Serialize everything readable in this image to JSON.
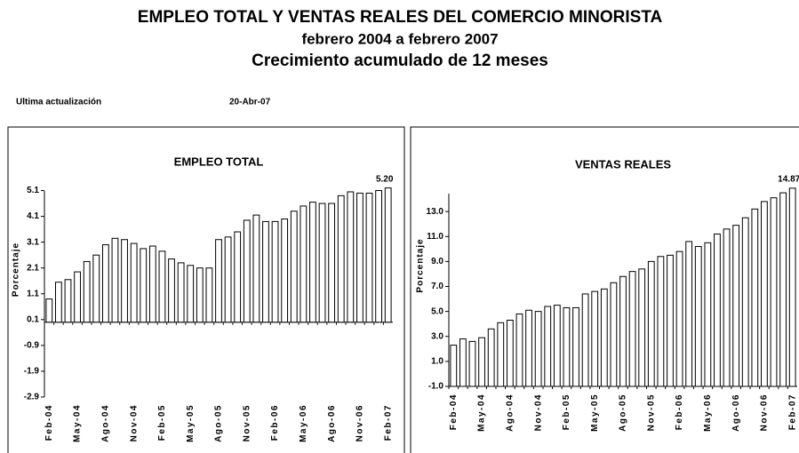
{
  "header": {
    "title": "EMPLEO TOTAL Y VENTAS REALES DEL COMERCIO MINORISTA",
    "subtitle": "febrero 2004 a febrero 2007",
    "subtitle2": "Crecimiento acumulado de 12 meses",
    "updated_label": "Ultima actualización",
    "updated_date": "20-Abr-07"
  },
  "chart_data": [
    {
      "type": "bar",
      "title": "EMPLEO TOTAL",
      "ylabel": "Porcentaje",
      "color": "#ffffff",
      "edge_color": "#000000",
      "categories": [
        "Feb-04",
        null,
        null,
        "May-04",
        null,
        null,
        "Ago-04",
        null,
        null,
        "Nov-04",
        null,
        null,
        "Feb-05",
        null,
        null,
        "May-05",
        null,
        null,
        "Ago-05",
        null,
        null,
        "Nov-05",
        null,
        null,
        "Feb-06",
        null,
        null,
        "May-06",
        null,
        null,
        "Ago-06",
        null,
        null,
        "Nov-06",
        null,
        null,
        "Feb-07"
      ],
      "values": [
        0.9,
        1.55,
        1.65,
        1.95,
        2.35,
        2.6,
        3.0,
        3.25,
        3.2,
        3.05,
        2.85,
        2.95,
        2.75,
        2.45,
        2.3,
        2.2,
        2.1,
        2.1,
        3.2,
        3.3,
        3.5,
        3.95,
        4.15,
        3.9,
        3.9,
        4.0,
        4.3,
        4.5,
        4.65,
        4.6,
        4.6,
        4.9,
        5.05,
        5.0,
        5.0,
        5.1,
        5.2
      ],
      "value_labels": [
        null,
        null,
        null,
        null,
        null,
        null,
        null,
        null,
        null,
        null,
        null,
        null,
        null,
        null,
        null,
        null,
        null,
        null,
        null,
        null,
        null,
        null,
        null,
        null,
        null,
        null,
        null,
        null,
        null,
        null,
        null,
        null,
        null,
        null,
        null,
        null,
        "5.20"
      ],
      "ylim": [
        -2.9,
        5.6
      ],
      "yticks": [
        -2.9,
        -1.9,
        -0.9,
        0.1,
        1.1,
        2.1,
        3.1,
        4.1,
        5.1
      ],
      "x_axis_at_min": false
    },
    {
      "type": "bar",
      "title": "VENTAS  REALES",
      "ylabel": "Porcentaje",
      "color": "#ffffff",
      "edge_color": "#000000",
      "categories": [
        "Feb-04",
        null,
        null,
        "May-04",
        null,
        null,
        "Ago-04",
        null,
        null,
        "Nov-04",
        null,
        null,
        "Feb-05",
        null,
        null,
        "May-05",
        null,
        null,
        "Ago-05",
        null,
        null,
        "Nov-05",
        null,
        null,
        "Feb-06",
        null,
        null,
        "May-06",
        null,
        null,
        "Ago-06",
        null,
        null,
        "Nov-06",
        null,
        null,
        "Feb-07"
      ],
      "values": [
        2.3,
        2.8,
        2.6,
        2.9,
        3.6,
        4.1,
        4.3,
        4.8,
        5.1,
        5.0,
        5.4,
        5.5,
        5.3,
        5.3,
        6.4,
        6.6,
        6.8,
        7.3,
        7.8,
        8.2,
        8.4,
        9.0,
        9.4,
        9.5,
        9.8,
        10.6,
        10.2,
        10.5,
        11.2,
        11.6,
        11.9,
        12.5,
        13.2,
        13.8,
        14.1,
        14.5,
        14.87
      ],
      "value_labels": [
        null,
        null,
        null,
        null,
        null,
        null,
        null,
        null,
        null,
        null,
        null,
        null,
        null,
        null,
        null,
        null,
        null,
        null,
        null,
        null,
        null,
        null,
        null,
        null,
        null,
        null,
        null,
        null,
        null,
        null,
        null,
        null,
        null,
        null,
        null,
        null,
        "14.87"
      ],
      "ylim": [
        -1.0,
        15.5
      ],
      "yticks": [
        {
          "value": -1.0,
          "label": "-1.0"
        },
        {
          "value": 1.0,
          "label": "1.0"
        },
        {
          "value": 3.0,
          "label": "3.0"
        },
        {
          "value": 5.0,
          "label": "5.0"
        },
        {
          "value": 7.0,
          "label": "7.0"
        },
        {
          "value": 9.0,
          "label": "9.0"
        },
        {
          "value": 11.0,
          "label": "11.0"
        },
        {
          "value": 13.0,
          "label": "13.0"
        }
      ],
      "x_axis_at_min": true
    }
  ]
}
